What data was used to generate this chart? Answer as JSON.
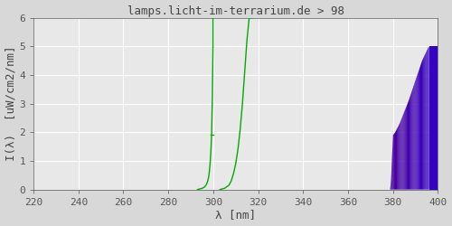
{
  "title": "lamps.licht-im-terrarium.de > 98",
  "xlabel": "λ [nm]",
  "ylabel": "I(λ)  [uW/cm2/nm]",
  "xlim": [
    220,
    400
  ],
  "ylim": [
    0.0,
    6.0
  ],
  "xticks": [
    220,
    240,
    260,
    280,
    300,
    320,
    340,
    360,
    380,
    400
  ],
  "yticks": [
    0.0,
    1.0,
    2.0,
    3.0,
    4.0,
    5.0,
    6.0
  ],
  "bg_color": "#d8d8d8",
  "plot_bg_color": "#e8e8e8",
  "grid_color": "#ffffff",
  "line_color": "#00aa00",
  "title_color": "#444444",
  "label_color": "#444444",
  "tick_color": "#555555",
  "font_family": "monospace",
  "title_fontsize": 9,
  "axis_label_fontsize": 9,
  "tick_fontsize": 8,
  "left_curve_x": [
    293.0,
    294.0,
    295.0,
    296.0,
    296.5,
    297.0,
    297.5,
    298.0,
    298.3,
    298.6,
    299.0,
    299.3,
    299.6,
    299.9
  ],
  "left_curve_y": [
    0.0,
    0.02,
    0.04,
    0.08,
    0.12,
    0.18,
    0.28,
    0.45,
    0.65,
    0.9,
    1.4,
    2.0,
    3.2,
    5.0
  ],
  "right_curve_x": [
    303.0,
    305.0,
    307.0,
    308.0,
    309.0,
    310.0,
    311.0,
    312.0,
    313.0,
    314.0,
    315.0,
    316.0,
    317.0,
    318.0
  ],
  "right_curve_y": [
    0.0,
    0.04,
    0.15,
    0.3,
    0.55,
    0.9,
    1.4,
    2.1,
    3.0,
    4.1,
    5.2,
    6.0,
    6.0,
    6.0
  ],
  "purple_left_x": [
    374.0,
    375.0,
    376.0,
    377.0,
    378.0,
    379.0,
    380.0,
    381.0,
    382.0,
    383.0,
    384.0,
    385.0,
    387.0,
    390.0,
    393.0,
    396.0,
    400.0
  ],
  "purple_left_y": [
    0.0,
    0.0,
    0.0,
    0.0,
    0.0,
    0.0,
    1.9,
    2.0,
    2.15,
    2.3,
    2.5,
    2.7,
    3.1,
    3.8,
    4.5,
    5.0,
    5.0
  ]
}
